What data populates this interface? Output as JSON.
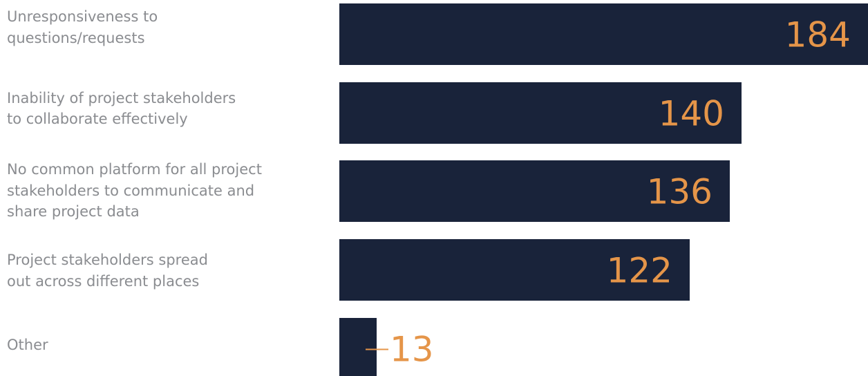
{
  "chart_data": {
    "type": "bar",
    "orientation": "horizontal",
    "categories": [
      [
        "Unresponsiveness to",
        "questions/requests"
      ],
      [
        "Inability of project stakeholders",
        "to collaborate effectively"
      ],
      [
        "No common platform for all project",
        "stakeholders to communicate and",
        "share project data"
      ],
      [
        "Project stakeholders spread",
        "out across different places"
      ],
      [
        "Other"
      ]
    ],
    "values": [
      184,
      140,
      136,
      122,
      13
    ],
    "value_labels": [
      "184",
      "140",
      "136",
      "122",
      "13"
    ],
    "xlim": [
      0,
      184
    ],
    "grid": false,
    "legend": "none",
    "colors": {
      "bar": "#19233a",
      "value_label": "#e59549",
      "category_label": "#8a8c90"
    }
  }
}
